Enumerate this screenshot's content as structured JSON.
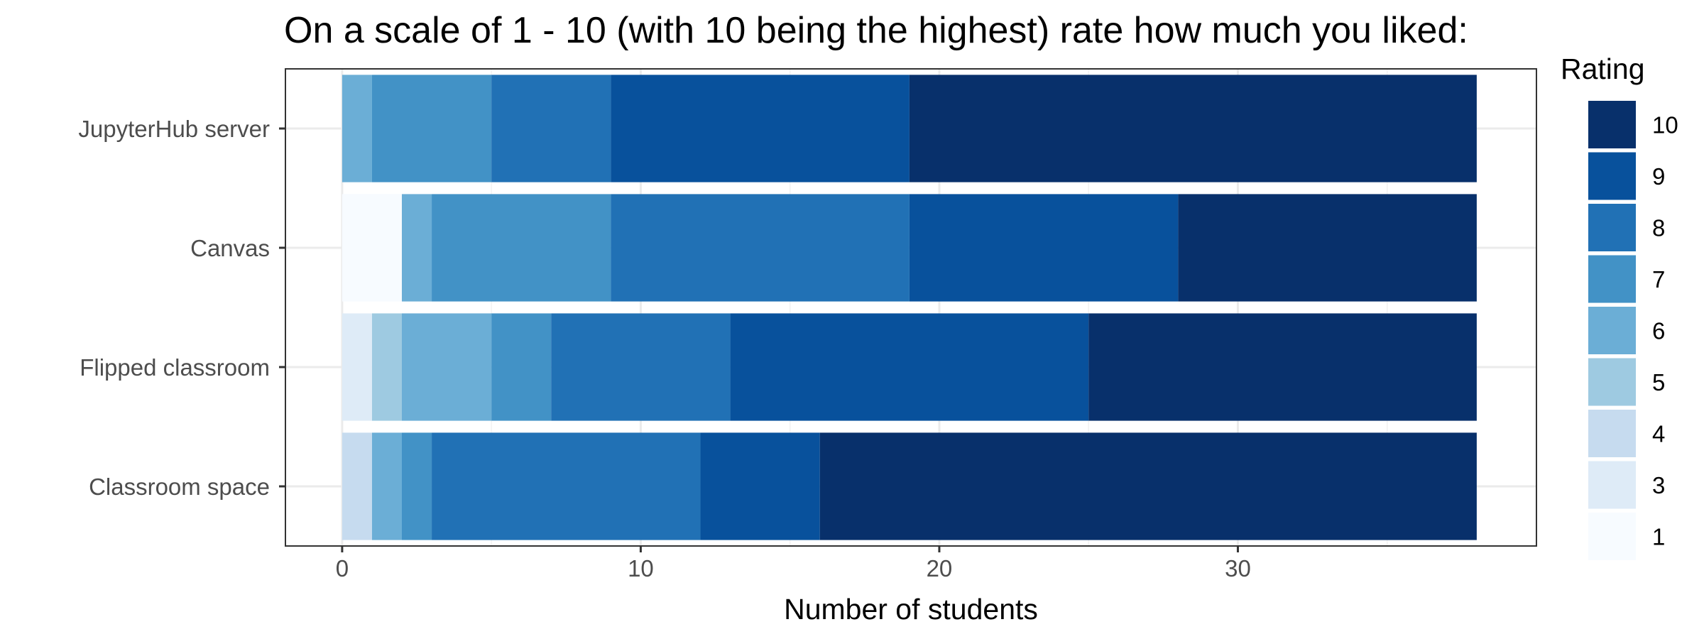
{
  "chart_data": {
    "type": "bar",
    "orientation": "horizontal",
    "stacked": true,
    "title": "On a scale of 1 - 10 (with 10 being the highest) rate how much you liked:",
    "xlabel": "Number of students",
    "ylabel": "",
    "xlim": [
      -1.9,
      40
    ],
    "x_ticks": [
      0,
      10,
      20,
      30
    ],
    "grid": true,
    "categories": [
      "JupyterHub server",
      "Canvas",
      "Flipped classroom",
      "Classroom space"
    ],
    "legend": {
      "title": "Rating",
      "position": "right"
    },
    "series": [
      {
        "name": "1",
        "color": "#F7FBFF",
        "values": [
          0,
          2,
          0,
          0
        ]
      },
      {
        "name": "3",
        "color": "#DEEBF7",
        "values": [
          0,
          0,
          1,
          0
        ]
      },
      {
        "name": "4",
        "color": "#C6DBEF",
        "values": [
          0,
          0,
          0,
          1
        ]
      },
      {
        "name": "5",
        "color": "#9ECAE1",
        "values": [
          0,
          0,
          1,
          0
        ]
      },
      {
        "name": "6",
        "color": "#6BAED6",
        "values": [
          1,
          1,
          3,
          1
        ]
      },
      {
        "name": "7",
        "color": "#4292C6",
        "values": [
          4,
          6,
          2,
          1
        ]
      },
      {
        "name": "8",
        "color": "#2171B5",
        "values": [
          4,
          10,
          6,
          9
        ]
      },
      {
        "name": "9",
        "color": "#08519C",
        "values": [
          10,
          9,
          12,
          4
        ]
      },
      {
        "name": "10",
        "color": "#08306B",
        "values": [
          19,
          10,
          13,
          22
        ]
      }
    ]
  }
}
